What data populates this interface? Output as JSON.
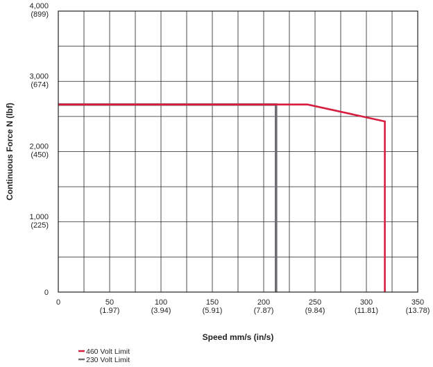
{
  "chart_data": {
    "type": "line",
    "xlabel": "Speed mm/s (in/s)",
    "ylabel": "Continuous Force N (lbf)",
    "xlim": [
      0,
      350
    ],
    "ylim": [
      0,
      4000
    ],
    "grid": true,
    "legend_position": "bottom-left",
    "x_ticks": [
      {
        "value": 0,
        "label": "0",
        "sub": ""
      },
      {
        "value": 50,
        "label": "50",
        "sub": "(1.97)"
      },
      {
        "value": 100,
        "label": "100",
        "sub": "(3.94)"
      },
      {
        "value": 150,
        "label": "150",
        "sub": "(5.91)"
      },
      {
        "value": 200,
        "label": "200",
        "sub": "(7.87)"
      },
      {
        "value": 250,
        "label": "250",
        "sub": "(9.84)"
      },
      {
        "value": 300,
        "label": "300",
        "sub": "(11.81)"
      },
      {
        "value": 350,
        "label": "350",
        "sub": "(13.78)"
      }
    ],
    "y_ticks": [
      {
        "value": 0,
        "label": "0",
        "sub": ""
      },
      {
        "value": 1000,
        "label": "1,000",
        "sub": "(225)"
      },
      {
        "value": 2000,
        "label": "2,000",
        "sub": "(450)"
      },
      {
        "value": 3000,
        "label": "3,000",
        "sub": "(674)"
      },
      {
        "value": 4000,
        "label": "4,000",
        "sub": "(899)"
      }
    ],
    "x_grid": [
      0,
      25,
      50,
      75,
      100,
      125,
      150,
      175,
      200,
      225,
      250,
      275,
      300,
      325,
      350
    ],
    "y_grid": [
      0,
      500,
      1000,
      1500,
      2000,
      2500,
      3000,
      3500,
      4000
    ],
    "series": [
      {
        "name": "460 Volt Limit",
        "color": "#d81e3f",
        "points": [
          [
            0,
            2670
          ],
          [
            243,
            2670
          ],
          [
            318,
            2430
          ],
          [
            318,
            0
          ]
        ]
      },
      {
        "name": "230 Volt Limit",
        "color": "#6d6e71",
        "points": [
          [
            0,
            2670
          ],
          [
            212,
            2670
          ],
          [
            212,
            0
          ]
        ]
      }
    ]
  }
}
